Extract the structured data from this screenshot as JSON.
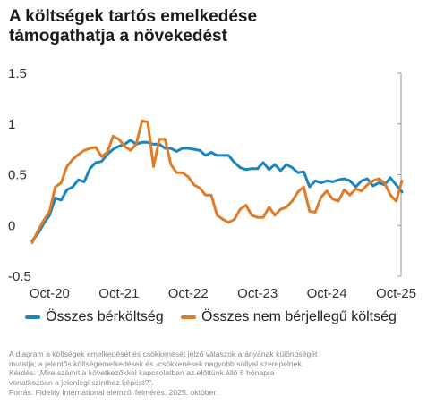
{
  "title": {
    "line1": "A költségek tartós emelkedése",
    "line2": "támogathatja a növekedést"
  },
  "colors": {
    "series_0": "#1a85c0",
    "series_1": "#e07b27",
    "axis": "#9a9a9a",
    "tick_text": "#333333"
  },
  "footnote": {
    "line1": "A diagram a költségek emelkedését és csökkenését jelző válaszok arányának különbségét",
    "line2": "mutatja; a jelentős költségemelkedések és -csökkenések nagyobb súllyal szerepelnek.",
    "line3": "Kérdés: „Mire számít a következőkkel kapcsolatban az előttünk álló 6 hónapra",
    "line4": "vonatkozóan a jelenlegi szinthez képest?”.",
    "line5": "Forrás: Fidelity International elemzői felmérés, 2025. október."
  },
  "chart_data": {
    "type": "line",
    "title": "A költségek tartós emelkedése támogathatja a növekedést",
    "xlabel": "",
    "ylabel": "",
    "xlim": [
      "2020-07",
      "2025-11"
    ],
    "ylim": [
      -0.5,
      1.5
    ],
    "y_ticks": [
      "1.5",
      "1",
      "0.5",
      "0",
      "-0.5"
    ],
    "y_tick_values": [
      1.5,
      1,
      0.5,
      0,
      -0.5
    ],
    "x_tick_labels": [
      "Oct-20",
      "Oct-21",
      "Oct-22",
      "Oct-23",
      "Oct-24",
      "Oct-25"
    ],
    "x_tick_values": [
      "2020-10",
      "2021-10",
      "2022-10",
      "2023-10",
      "2024-10",
      "2025-10"
    ],
    "grid": false,
    "legend_position": "bottom",
    "series": [
      {
        "name": "Összes bérköltség",
        "color": "#1a85c0",
        "x": [
          "2020-07",
          "2020-08",
          "2020-09",
          "2020-10",
          "2020-11",
          "2020-12",
          "2021-01",
          "2021-02",
          "2021-03",
          "2021-04",
          "2021-05",
          "2021-06",
          "2021-07",
          "2021-08",
          "2021-09",
          "2021-10",
          "2021-11",
          "2021-12",
          "2022-01",
          "2022-02",
          "2022-03",
          "2022-04",
          "2022-05",
          "2022-06",
          "2022-07",
          "2022-08",
          "2022-09",
          "2022-10",
          "2022-11",
          "2022-12",
          "2023-01",
          "2023-02",
          "2023-03",
          "2023-04",
          "2023-05",
          "2023-06",
          "2023-07",
          "2023-08",
          "2023-09",
          "2023-10",
          "2023-11",
          "2023-12",
          "2024-01",
          "2024-02",
          "2024-03",
          "2024-04",
          "2024-05",
          "2024-06",
          "2024-07",
          "2024-08",
          "2024-09",
          "2024-10",
          "2024-11",
          "2024-12",
          "2025-01",
          "2025-02",
          "2025-03",
          "2025-04",
          "2025-05",
          "2025-06",
          "2025-07",
          "2025-08",
          "2025-09",
          "2025-10",
          "2025-11"
        ],
        "y": [
          -0.15,
          -0.08,
          0.02,
          0.1,
          0.27,
          0.25,
          0.35,
          0.38,
          0.45,
          0.43,
          0.56,
          0.62,
          0.63,
          0.7,
          0.75,
          0.78,
          0.8,
          0.84,
          0.8,
          0.82,
          0.82,
          0.8,
          0.8,
          0.76,
          0.76,
          0.73,
          0.76,
          0.76,
          0.75,
          0.74,
          0.69,
          0.72,
          0.69,
          0.69,
          0.69,
          0.62,
          0.57,
          0.55,
          0.56,
          0.56,
          0.62,
          0.55,
          0.6,
          0.54,
          0.6,
          0.57,
          0.52,
          0.53,
          0.38,
          0.44,
          0.42,
          0.44,
          0.43,
          0.45,
          0.46,
          0.44,
          0.38,
          0.44,
          0.46,
          0.39,
          0.42,
          0.4,
          0.47,
          0.4,
          0.33
        ]
      },
      {
        "name": "Összes nem bérjellegű költség",
        "color": "#e07b27",
        "x": [
          "2020-07",
          "2020-08",
          "2020-09",
          "2020-10",
          "2020-11",
          "2020-12",
          "2021-01",
          "2021-02",
          "2021-03",
          "2021-04",
          "2021-05",
          "2021-06",
          "2021-07",
          "2021-08",
          "2021-09",
          "2021-10",
          "2021-11",
          "2021-12",
          "2022-01",
          "2022-02",
          "2022-03",
          "2022-04",
          "2022-05",
          "2022-06",
          "2022-07",
          "2022-08",
          "2022-09",
          "2022-10",
          "2022-11",
          "2022-12",
          "2023-01",
          "2023-02",
          "2023-03",
          "2023-04",
          "2023-05",
          "2023-06",
          "2023-07",
          "2023-08",
          "2023-09",
          "2023-10",
          "2023-11",
          "2023-12",
          "2024-01",
          "2024-02",
          "2024-03",
          "2024-04",
          "2024-05",
          "2024-06",
          "2024-07",
          "2024-08",
          "2024-09",
          "2024-10",
          "2024-11",
          "2024-12",
          "2025-01",
          "2025-02",
          "2025-03",
          "2025-04",
          "2025-05",
          "2025-06",
          "2025-07",
          "2025-08",
          "2025-09",
          "2025-10",
          "2025-11"
        ],
        "y": [
          -0.17,
          -0.05,
          0.05,
          0.14,
          0.38,
          0.42,
          0.58,
          0.65,
          0.7,
          0.74,
          0.76,
          0.77,
          0.68,
          0.72,
          0.88,
          0.85,
          0.78,
          0.74,
          0.8,
          1.03,
          1.02,
          0.58,
          0.85,
          0.85,
          0.6,
          0.52,
          0.52,
          0.48,
          0.4,
          0.37,
          0.3,
          0.3,
          0.1,
          0.06,
          0.03,
          0.06,
          0.16,
          0.2,
          0.1,
          0.08,
          0.08,
          0.18,
          0.1,
          0.16,
          0.18,
          0.24,
          0.33,
          0.38,
          0.14,
          0.13,
          0.28,
          0.34,
          0.26,
          0.24,
          0.35,
          0.3,
          0.36,
          0.34,
          0.4,
          0.44,
          0.46,
          0.42,
          0.3,
          0.24,
          0.44
        ]
      }
    ]
  }
}
